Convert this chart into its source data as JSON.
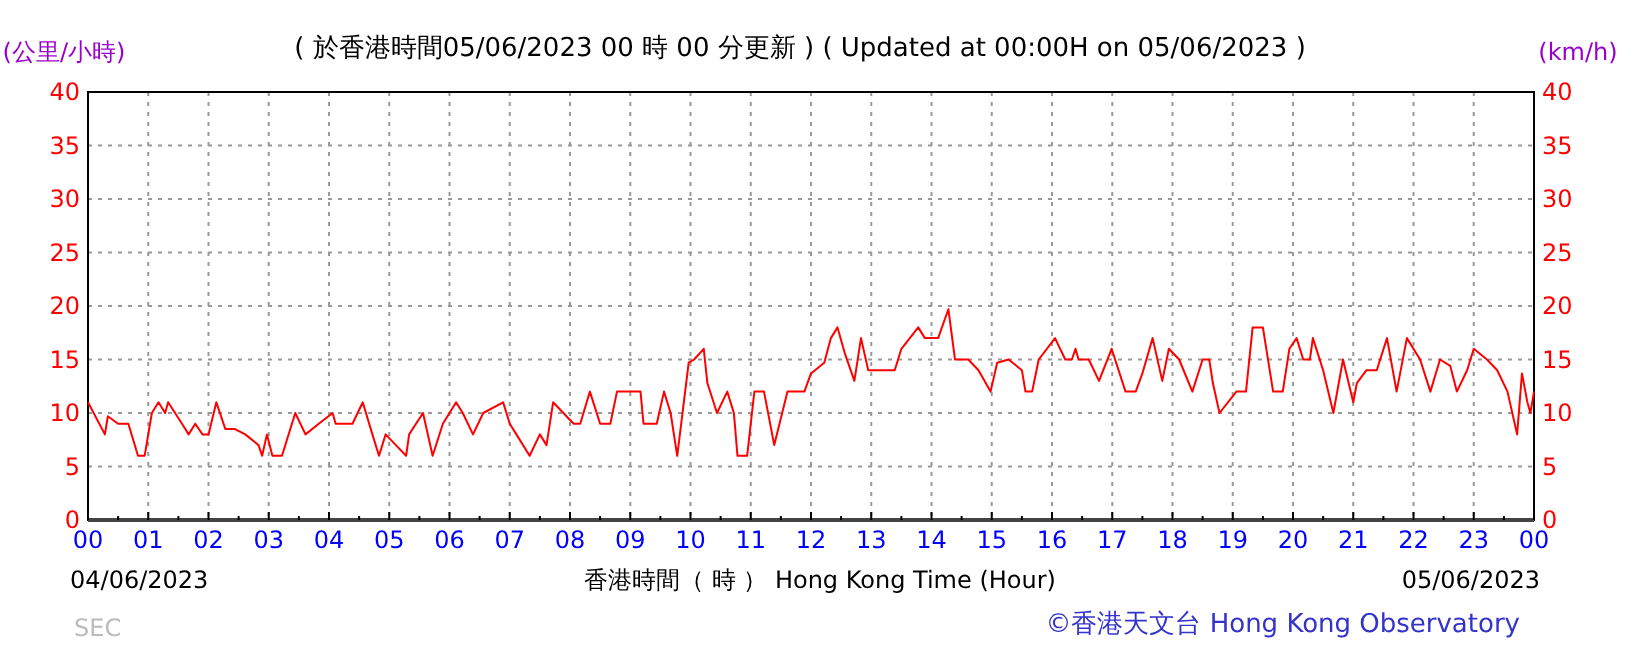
{
  "chart_data": {
    "type": "line",
    "title": "( 於香港時間05/06/2023 00 時 00 分更新 ) ( Updated at 00:00H on 05/06/2023 )",
    "ylabel": "(公里/小時)",
    "y2label": "(km/h)",
    "xlabel": "香港時間（ 時 ） Hong Kong Time (Hour)",
    "annotations": [
      "04/06/2023",
      "05/06/2023",
      "©香港天文台 Hong Kong Observatory",
      "SEC"
    ],
    "xlim": [
      0,
      24
    ],
    "xticks": [
      {
        "value": 0,
        "label": "00"
      },
      {
        "value": 1,
        "label": "01"
      },
      {
        "value": 2,
        "label": "02"
      },
      {
        "value": 3,
        "label": "03"
      },
      {
        "value": 4,
        "label": "04"
      },
      {
        "value": 5,
        "label": "05"
      },
      {
        "value": 6,
        "label": "06"
      },
      {
        "value": 7,
        "label": "07"
      },
      {
        "value": 8,
        "label": "08"
      },
      {
        "value": 9,
        "label": "09"
      },
      {
        "value": 10,
        "label": "10"
      },
      {
        "value": 11,
        "label": "11"
      },
      {
        "value": 12,
        "label": "12"
      },
      {
        "value": 13,
        "label": "13"
      },
      {
        "value": 14,
        "label": "14"
      },
      {
        "value": 15,
        "label": "15"
      },
      {
        "value": 16,
        "label": "16"
      },
      {
        "value": 17,
        "label": "17"
      },
      {
        "value": 18,
        "label": "18"
      },
      {
        "value": 19,
        "label": "19"
      },
      {
        "value": 20,
        "label": "20"
      },
      {
        "value": 21,
        "label": "21"
      },
      {
        "value": 22,
        "label": "22"
      },
      {
        "value": 23,
        "label": "23"
      },
      {
        "value": 24,
        "label": "00"
      }
    ],
    "ylim": [
      0,
      40
    ],
    "yticks": [
      0,
      5,
      10,
      15,
      20,
      25,
      30,
      35,
      40
    ],
    "y2lim": [
      0,
      40
    ],
    "y2ticks": [
      0,
      5,
      10,
      15,
      20,
      25,
      30,
      35,
      40
    ],
    "grid": true,
    "series": [
      {
        "color": "#ff0000",
        "line_style": "solid",
        "x": [
          0,
          0.28,
          0.33,
          0.5,
          0.67,
          0.83,
          0.94,
          1.06,
          1.17,
          1.28,
          1.33,
          1.56,
          1.67,
          1.78,
          1.9,
          2.0,
          2.13,
          2.28,
          2.44,
          2.61,
          2.83,
          2.89,
          2.97,
          3.06,
          3.22,
          3.44,
          3.61,
          3.83,
          4.06,
          4.11,
          4.39,
          4.56,
          4.72,
          4.83,
          4.94,
          5.11,
          5.28,
          5.33,
          5.56,
          5.72,
          5.89,
          6.11,
          6.22,
          6.39,
          6.56,
          6.89,
          7.0,
          7.11,
          7.33,
          7.5,
          7.61,
          7.72,
          7.89,
          8.06,
          8.17,
          8.33,
          8.5,
          8.67,
          8.78,
          9.17,
          9.22,
          9.44,
          9.56,
          9.67,
          9.78,
          9.97,
          10.06,
          10.22,
          10.28,
          10.44,
          10.61,
          10.72,
          10.78,
          10.94,
          11.06,
          11.22,
          11.39,
          11.61,
          11.89,
          12.0,
          12.22,
          12.33,
          12.44,
          12.56,
          12.72,
          12.83,
          12.95,
          13.39,
          13.5,
          13.78,
          13.89,
          14.11,
          14.28,
          14.39,
          14.61,
          14.78,
          14.98,
          15.09,
          15.28,
          15.5,
          15.56,
          15.67,
          15.78,
          16.05,
          16.22,
          16.33,
          16.39,
          16.44,
          16.61,
          16.78,
          16.99,
          17.22,
          17.39,
          17.5,
          17.67,
          17.83,
          17.94,
          18.11,
          18.33,
          18.5,
          18.61,
          18.67,
          18.78,
          19.06,
          19.22,
          19.33,
          19.5,
          19.67,
          19.83,
          19.94,
          20.06,
          20.17,
          20.28,
          20.33,
          20.5,
          20.67,
          20.83,
          21.0,
          21.06,
          21.22,
          21.39,
          21.56,
          21.72,
          21.89,
          22.11,
          22.28,
          22.44,
          22.61,
          22.72,
          22.89,
          23.0,
          23.22,
          23.39,
          23.56,
          23.72,
          23.8,
          23.89,
          23.94,
          24.0
        ],
        "values": [
          11,
          8,
          9.7,
          9,
          9,
          6,
          6,
          10,
          11,
          10,
          11,
          9,
          8,
          9,
          8,
          8,
          11,
          8.5,
          8.5,
          8,
          7,
          6,
          8,
          6,
          6,
          10,
          8,
          9,
          10,
          9,
          9,
          11,
          8,
          6,
          8,
          7,
          6,
          8,
          10,
          6,
          9,
          11,
          10,
          8,
          10,
          11,
          9,
          8,
          6,
          8,
          7,
          11,
          10,
          9,
          9,
          12,
          9,
          9,
          12,
          12,
          9,
          9,
          12,
          10,
          6,
          14.7,
          15,
          16,
          12.8,
          10,
          12,
          10,
          6,
          6,
          12,
          12,
          7,
          12,
          12,
          13.7,
          14.7,
          17,
          18,
          15.6,
          13,
          17,
          14,
          14,
          16,
          18,
          17,
          17,
          19.7,
          15,
          15,
          14,
          12,
          14.7,
          15,
          14,
          12,
          12,
          15,
          17,
          15,
          15,
          16,
          15,
          15,
          13,
          16,
          12,
          12,
          13.7,
          17,
          13,
          16,
          15,
          12,
          15,
          15,
          12.8,
          10,
          12,
          12,
          18,
          18,
          12,
          12,
          16,
          17,
          15,
          15,
          17,
          14,
          10,
          15,
          11,
          12.8,
          14,
          14,
          17,
          12,
          17,
          15,
          12,
          15,
          14.4,
          12,
          14,
          16,
          15,
          14,
          12,
          8,
          13.7,
          11,
          10,
          12
        ]
      }
    ]
  }
}
